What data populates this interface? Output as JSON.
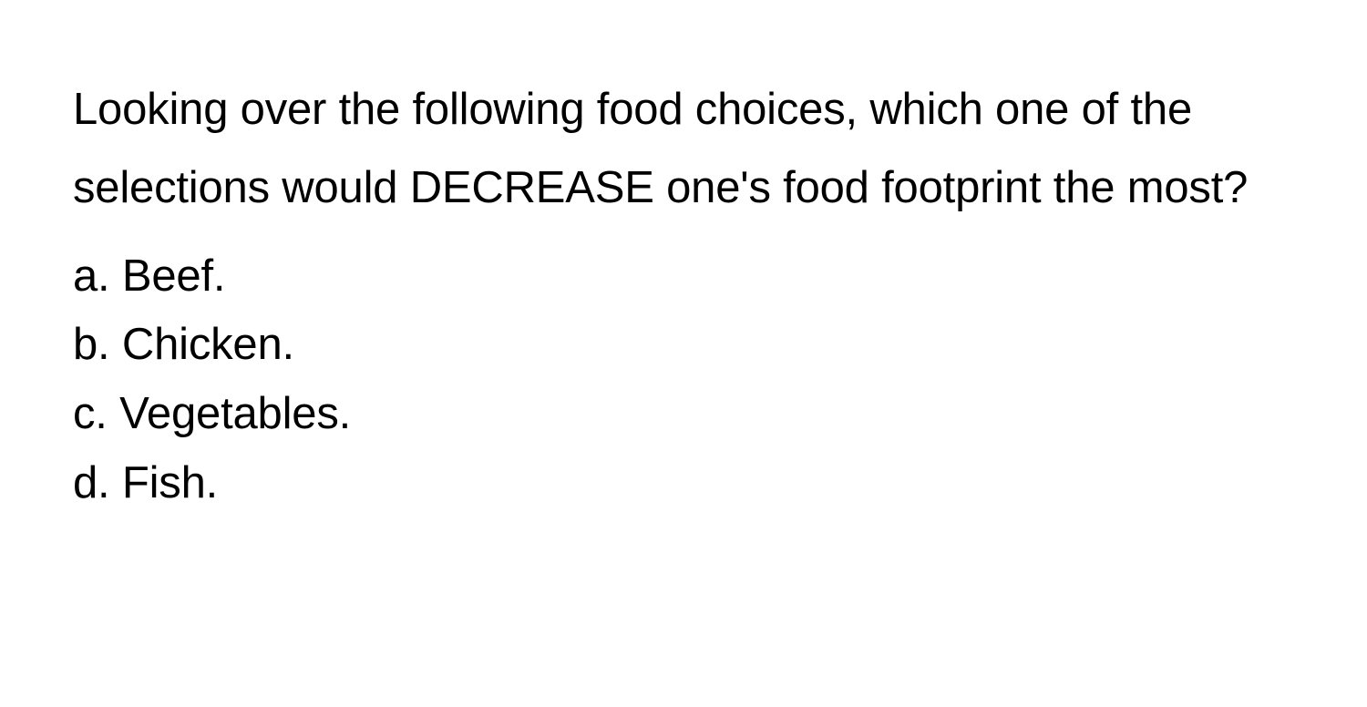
{
  "question": {
    "prompt": "Looking over the following food choices, which one of the selections would DECREASE one's food footprint the most?",
    "options": [
      {
        "label": "a.",
        "text": "Beef."
      },
      {
        "label": "b.",
        "text": "Chicken."
      },
      {
        "label": "c.",
        "text": "Vegetables."
      },
      {
        "label": "d.",
        "text": "Fish."
      }
    ]
  }
}
